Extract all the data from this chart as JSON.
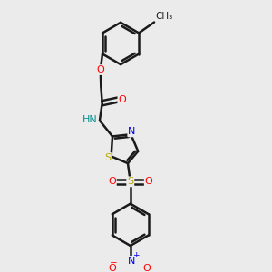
{
  "background_color": "#ebebeb",
  "bond_color": "#1a1a1a",
  "bond_width": 1.8,
  "atom_colors": {
    "O": "#ff0000",
    "N": "#0000ee",
    "S": "#bbaa00",
    "H": "#009090",
    "C": "#1a1a1a"
  },
  "font_size": 8.0
}
